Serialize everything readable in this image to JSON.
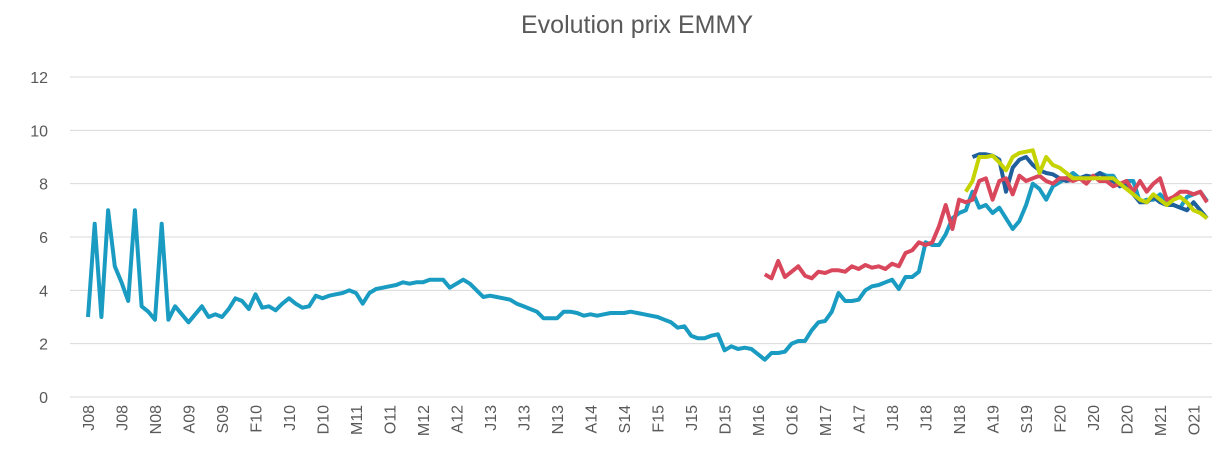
{
  "chart_data": {
    "type": "line",
    "title": "Evolution prix EMMY",
    "categories": [
      "J08",
      null,
      null,
      null,
      null,
      "J08",
      null,
      null,
      null,
      null,
      "N08",
      null,
      null,
      null,
      null,
      "A09",
      null,
      null,
      null,
      null,
      "S09",
      null,
      null,
      null,
      null,
      "F10",
      null,
      null,
      null,
      null,
      "J10",
      null,
      null,
      null,
      null,
      "D10",
      null,
      null,
      null,
      null,
      "M11",
      null,
      null,
      null,
      null,
      "O11",
      null,
      null,
      null,
      null,
      "M12",
      null,
      null,
      null,
      null,
      "A12",
      null,
      null,
      null,
      null,
      "J13",
      null,
      null,
      null,
      null,
      "J13",
      null,
      null,
      null,
      null,
      "N13",
      null,
      null,
      null,
      null,
      "A14",
      null,
      null,
      null,
      null,
      "S14",
      null,
      null,
      null,
      null,
      "F15",
      null,
      null,
      null,
      null,
      "J15",
      null,
      null,
      null,
      null,
      "D15",
      null,
      null,
      null,
      null,
      "M16",
      null,
      null,
      null,
      null,
      "O16",
      null,
      null,
      null,
      null,
      "M17",
      null,
      null,
      null,
      null,
      "A17",
      null,
      null,
      null,
      null,
      "J18",
      null,
      null,
      null,
      null,
      "J18",
      null,
      null,
      null,
      null,
      "N18",
      null,
      null,
      null,
      null,
      "A19",
      null,
      null,
      null,
      null,
      "S19",
      null,
      null,
      null,
      null,
      "F20",
      null,
      null,
      null,
      null,
      "J20",
      null,
      null,
      null,
      null,
      "D20",
      null,
      null,
      null,
      null,
      "M21",
      null,
      null,
      null,
      null,
      "O21",
      null,
      null
    ],
    "series": [
      {
        "color": "#1a9bc2",
        "values": [
          3.0,
          6.5,
          3.0,
          7.0,
          4.9,
          4.3,
          3.6,
          7.0,
          3.4,
          3.2,
          2.9,
          6.5,
          2.9,
          3.4,
          3.1,
          2.8,
          3.1,
          3.4,
          3.0,
          3.1,
          3.0,
          3.3,
          3.7,
          3.6,
          3.3,
          3.85,
          3.35,
          3.4,
          3.25,
          3.5,
          3.7,
          3.5,
          3.35,
          3.4,
          3.8,
          3.7,
          3.8,
          3.85,
          3.9,
          4.0,
          3.9,
          3.5,
          3.9,
          4.05,
          4.1,
          4.15,
          4.2,
          4.3,
          4.25,
          4.3,
          4.3,
          4.4,
          4.4,
          4.4,
          4.1,
          4.25,
          4.4,
          4.25,
          4.0,
          3.75,
          3.8,
          3.75,
          3.7,
          3.65,
          3.5,
          3.4,
          3.3,
          3.2,
          2.95,
          2.95,
          2.95,
          3.2,
          3.2,
          3.15,
          3.05,
          3.1,
          3.05,
          3.1,
          3.15,
          3.15,
          3.15,
          3.2,
          3.15,
          3.1,
          3.05,
          3.0,
          2.9,
          2.8,
          2.6,
          2.65,
          2.3,
          2.2,
          2.2,
          2.3,
          2.35,
          1.75,
          1.9,
          1.8,
          1.85,
          1.8,
          1.6,
          1.4,
          1.65,
          1.65,
          1.7,
          2.0,
          2.1,
          2.1,
          2.5,
          2.8,
          2.85,
          3.2,
          3.9,
          3.6,
          3.6,
          3.65,
          4.0,
          4.15,
          4.2,
          4.3,
          4.4,
          4.05,
          4.5,
          4.5,
          4.7,
          5.8,
          5.7,
          5.7,
          6.1,
          6.7,
          6.9,
          7.0,
          7.7,
          7.1,
          7.2,
          6.9,
          7.1,
          6.7,
          6.3,
          6.6,
          7.2,
          8.0,
          7.8,
          7.4,
          7.9,
          8.05,
          8.2,
          8.4,
          8.2,
          8.3,
          8.2,
          8.4,
          8.3,
          8.3,
          7.9,
          8.1,
          8.1,
          7.3,
          7.4,
          7.4,
          7.6,
          7.3,
          7.2,
          7.1,
          7.5,
          7.6,
          7.7,
          7.35
        ]
      },
      {
        "color": "#1f5f9c",
        "values": [
          null,
          null,
          null,
          null,
          null,
          null,
          null,
          null,
          null,
          null,
          null,
          null,
          null,
          null,
          null,
          null,
          null,
          null,
          null,
          null,
          null,
          null,
          null,
          null,
          null,
          null,
          null,
          null,
          null,
          null,
          null,
          null,
          null,
          null,
          null,
          null,
          null,
          null,
          null,
          null,
          null,
          null,
          null,
          null,
          null,
          null,
          null,
          null,
          null,
          null,
          null,
          null,
          null,
          null,
          null,
          null,
          null,
          null,
          null,
          null,
          null,
          null,
          null,
          null,
          null,
          null,
          null,
          null,
          null,
          null,
          null,
          null,
          null,
          null,
          null,
          null,
          null,
          null,
          null,
          null,
          null,
          null,
          null,
          null,
          null,
          null,
          null,
          null,
          null,
          null,
          null,
          null,
          null,
          null,
          null,
          null,
          null,
          null,
          null,
          null,
          null,
          null,
          null,
          null,
          null,
          null,
          null,
          null,
          null,
          null,
          null,
          null,
          null,
          null,
          null,
          null,
          null,
          null,
          null,
          null,
          null,
          null,
          null,
          null,
          null,
          null,
          null,
          null,
          null,
          null,
          null,
          null,
          9.0,
          9.1,
          9.1,
          9.05,
          8.9,
          7.7,
          8.6,
          8.9,
          9.0,
          8.7,
          8.5,
          8.4,
          8.35,
          8.2,
          8.1,
          8.15,
          8.2,
          8.3,
          8.25,
          8.4,
          8.2,
          8.1,
          7.9,
          8.0,
          7.6,
          7.3,
          7.3,
          7.5,
          7.3,
          7.2,
          7.2,
          7.1,
          7.0,
          7.3,
          7.0,
          6.7
        ]
      },
      {
        "color": "#d9475c",
        "values": [
          null,
          null,
          null,
          null,
          null,
          null,
          null,
          null,
          null,
          null,
          null,
          null,
          null,
          null,
          null,
          null,
          null,
          null,
          null,
          null,
          null,
          null,
          null,
          null,
          null,
          null,
          null,
          null,
          null,
          null,
          null,
          null,
          null,
          null,
          null,
          null,
          null,
          null,
          null,
          null,
          null,
          null,
          null,
          null,
          null,
          null,
          null,
          null,
          null,
          null,
          null,
          null,
          null,
          null,
          null,
          null,
          null,
          null,
          null,
          null,
          null,
          null,
          null,
          null,
          null,
          null,
          null,
          null,
          null,
          null,
          null,
          null,
          null,
          null,
          null,
          null,
          null,
          null,
          null,
          null,
          null,
          null,
          null,
          null,
          null,
          null,
          null,
          null,
          null,
          null,
          null,
          null,
          null,
          null,
          null,
          null,
          null,
          null,
          null,
          null,
          null,
          4.6,
          4.45,
          5.1,
          4.5,
          4.7,
          4.9,
          4.55,
          4.45,
          4.7,
          4.65,
          4.75,
          4.75,
          4.7,
          4.9,
          4.8,
          4.95,
          4.85,
          4.9,
          4.8,
          5.0,
          4.9,
          5.4,
          5.5,
          5.8,
          5.7,
          5.8,
          6.4,
          7.2,
          6.3,
          7.4,
          7.3,
          7.4,
          8.1,
          8.2,
          7.4,
          8.1,
          8.2,
          7.6,
          8.3,
          8.1,
          8.2,
          8.3,
          8.1,
          8.0,
          8.2,
          8.2,
          8.1,
          8.2,
          8.0,
          8.3,
          8.1,
          8.1,
          7.9,
          8.0,
          8.1,
          7.7,
          8.1,
          7.7,
          8.0,
          8.2,
          7.4,
          7.5,
          7.7,
          7.7,
          7.6,
          7.7,
          7.3
        ]
      },
      {
        "color": "#c5d300",
        "values": [
          null,
          null,
          null,
          null,
          null,
          null,
          null,
          null,
          null,
          null,
          null,
          null,
          null,
          null,
          null,
          null,
          null,
          null,
          null,
          null,
          null,
          null,
          null,
          null,
          null,
          null,
          null,
          null,
          null,
          null,
          null,
          null,
          null,
          null,
          null,
          null,
          null,
          null,
          null,
          null,
          null,
          null,
          null,
          null,
          null,
          null,
          null,
          null,
          null,
          null,
          null,
          null,
          null,
          null,
          null,
          null,
          null,
          null,
          null,
          null,
          null,
          null,
          null,
          null,
          null,
          null,
          null,
          null,
          null,
          null,
          null,
          null,
          null,
          null,
          null,
          null,
          null,
          null,
          null,
          null,
          null,
          null,
          null,
          null,
          null,
          null,
          null,
          null,
          null,
          null,
          null,
          null,
          null,
          null,
          null,
          null,
          null,
          null,
          null,
          null,
          null,
          null,
          null,
          null,
          null,
          null,
          null,
          null,
          null,
          null,
          null,
          null,
          null,
          null,
          null,
          null,
          null,
          null,
          null,
          null,
          null,
          null,
          null,
          null,
          null,
          null,
          null,
          null,
          null,
          null,
          null,
          7.7,
          8.1,
          9.0,
          9.0,
          9.05,
          8.8,
          8.5,
          9.0,
          9.15,
          9.2,
          9.25,
          8.4,
          9.0,
          8.7,
          8.6,
          8.4,
          8.2,
          8.2,
          8.2,
          8.2,
          8.2,
          8.2,
          8.2,
          8.0,
          7.8,
          7.6,
          7.4,
          7.3,
          7.6,
          7.4,
          7.2,
          7.4,
          7.5,
          7.3,
          7.0,
          6.9,
          6.7
        ]
      }
    ],
    "ylim": [
      0,
      12
    ],
    "yticks": [
      0,
      2,
      4,
      6,
      8,
      10,
      12
    ],
    "grid": true
  }
}
